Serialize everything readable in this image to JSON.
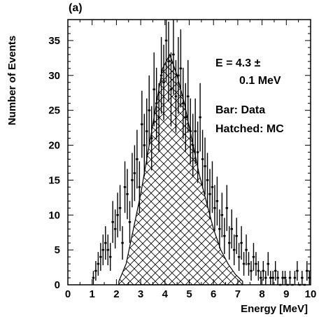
{
  "chart_data": {
    "type": "bar",
    "panel_label": "(a)",
    "xlabel": "Energy [MeV]",
    "ylabel": "Number of Events",
    "xlim": [
      0,
      10
    ],
    "ylim": [
      0,
      38
    ],
    "x_ticks": [
      "0",
      "1",
      "2",
      "3",
      "4",
      "5",
      "6",
      "7",
      "8",
      "9",
      "10"
    ],
    "y_ticks": [
      "0",
      "5",
      "10",
      "15",
      "20",
      "25",
      "30",
      "35"
    ],
    "annotations": {
      "energy_line1": "E = 4.3 ±",
      "energy_line2": "0.1 MeV",
      "legend_data": "Bar: Data",
      "legend_mc": "Hatched: MC"
    },
    "mc": {
      "name": "MC",
      "style": "hatched",
      "x": [
        2.1,
        2.4,
        2.7,
        3.0,
        3.3,
        3.6,
        3.9,
        4.2,
        4.5,
        4.8,
        5.1,
        5.4,
        5.7,
        6.0,
        6.3,
        6.6,
        6.9,
        7.2
      ],
      "y": [
        0.5,
        3,
        8,
        13,
        19,
        25,
        31,
        33,
        30,
        26,
        21,
        16,
        12,
        8,
        5,
        3,
        1.5,
        0.5
      ]
    },
    "series": [
      {
        "name": "Data",
        "style": "bars",
        "x": [
          1.0,
          1.1,
          1.2,
          1.3,
          1.4,
          1.5,
          1.6,
          1.7,
          1.8,
          1.9,
          2.0,
          2.1,
          2.2,
          2.3,
          2.4,
          2.5,
          2.6,
          2.7,
          2.8,
          2.9,
          3.0,
          3.1,
          3.2,
          3.3,
          3.4,
          3.5,
          3.6,
          3.7,
          3.8,
          3.9,
          4.0,
          4.1,
          4.2,
          4.3,
          4.4,
          4.5,
          4.6,
          4.7,
          4.8,
          4.9,
          5.0,
          5.1,
          5.2,
          5.3,
          5.4,
          5.5,
          5.6,
          5.7,
          5.8,
          5.9,
          6.0,
          6.1,
          6.2,
          6.3,
          6.4,
          6.5,
          6.6,
          6.7,
          6.8,
          6.9,
          7.0,
          7.1,
          7.2,
          7.3,
          7.4,
          7.5,
          7.6,
          7.7,
          7.8,
          7.9,
          8.0,
          8.1,
          8.2,
          8.3,
          8.4,
          8.5,
          8.6,
          8.7,
          8.8,
          8.9,
          9.0,
          9.1,
          9.2,
          9.3,
          9.4,
          9.5,
          9.6,
          9.7,
          9.8,
          9.9
        ],
        "y": [
          1,
          2,
          3,
          4,
          5,
          6,
          5,
          4,
          9,
          8,
          10,
          11,
          6,
          14,
          13,
          9,
          15,
          16,
          18,
          14,
          23,
          20,
          22,
          25,
          21,
          28,
          26,
          24,
          30,
          29,
          35,
          32,
          28,
          33,
          27,
          30,
          31,
          26,
          24,
          27,
          22,
          20,
          22,
          19,
          24,
          18,
          17,
          15,
          13,
          14,
          11,
          12,
          8,
          10,
          7,
          11,
          6,
          8,
          5,
          7,
          4,
          6,
          3,
          5,
          3,
          2,
          4,
          3,
          2,
          1,
          2,
          1,
          3,
          1,
          1,
          2,
          1,
          0,
          1,
          1,
          0,
          1,
          0,
          1,
          2,
          0,
          1,
          0,
          2,
          1
        ],
        "err": [
          1,
          1.4,
          1.7,
          2,
          2.2,
          2.4,
          2.2,
          2,
          3,
          2.8,
          3.2,
          3.3,
          2.4,
          3.7,
          3.6,
          3,
          3.9,
          4,
          4.2,
          3.7,
          4.8,
          4.5,
          4.7,
          5,
          4.6,
          5.3,
          5.1,
          4.9,
          5.5,
          5.4,
          5.9,
          5.7,
          5.3,
          5.7,
          5.2,
          5.5,
          5.6,
          5.1,
          4.9,
          5.2,
          4.7,
          4.5,
          4.7,
          4.4,
          4.9,
          4.2,
          4.1,
          3.9,
          3.6,
          3.7,
          3.3,
          3.5,
          2.8,
          3.2,
          2.6,
          3.3,
          2.4,
          2.8,
          2.2,
          2.6,
          2,
          2.4,
          1.7,
          2.2,
          1.7,
          1.4,
          2,
          1.7,
          1.4,
          1,
          1.4,
          1,
          1.7,
          1,
          1,
          1.4,
          1,
          0,
          1,
          1,
          0,
          1,
          0,
          1,
          1.4,
          0,
          1,
          0,
          1.4,
          1
        ]
      }
    ]
  }
}
